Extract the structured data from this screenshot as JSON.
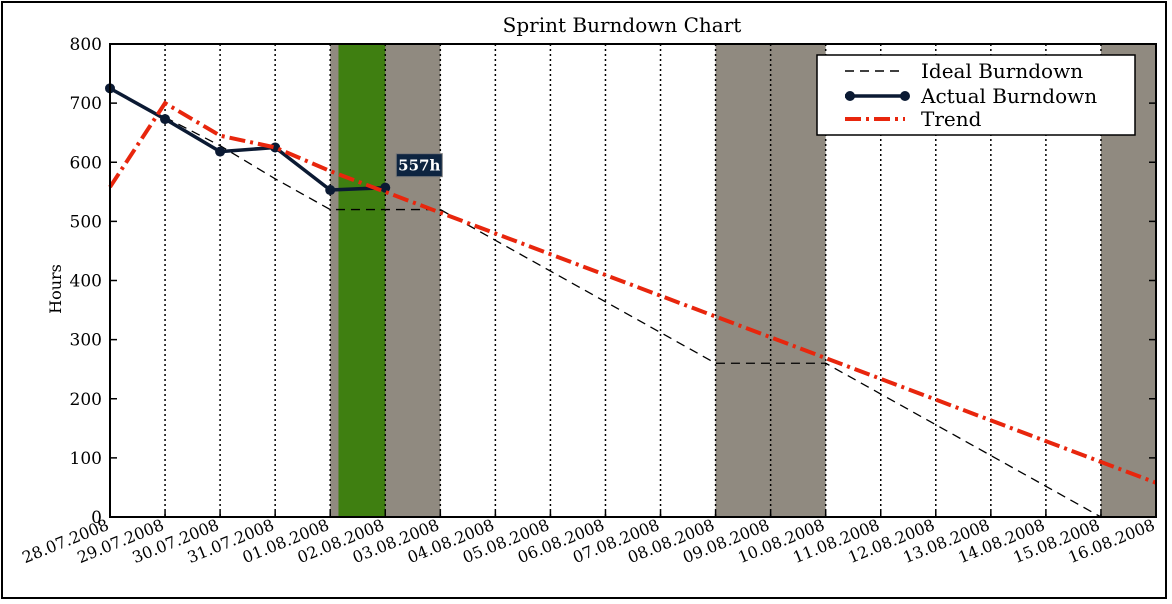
{
  "chart_data": {
    "type": "line",
    "title": "Sprint Burndown Chart",
    "xlabel": "",
    "ylabel": "Hours",
    "ylim": [
      0,
      800
    ],
    "yticks": [
      0,
      100,
      200,
      300,
      400,
      500,
      600,
      700,
      800
    ],
    "categories": [
      "28.07.2008",
      "29.07.2008",
      "30.07.2008",
      "31.07.2008",
      "01.08.2008",
      "02.08.2008",
      "03.08.2008",
      "04.08.2008",
      "05.08.2008",
      "06.08.2008",
      "07.08.2008",
      "08.08.2008",
      "09.08.2008",
      "10.08.2008",
      "11.08.2008",
      "12.08.2008",
      "13.08.2008",
      "14.08.2008",
      "15.08.2008",
      "16.08.2008"
    ],
    "shaded_days": [
      {
        "from": "01.08.2008",
        "to": "03.08.2008",
        "color": "#908a80"
      },
      {
        "from": "08.08.2008",
        "to": "10.08.2008",
        "color": "#908a80"
      },
      {
        "from": "15.08.2008",
        "to": "16.08.2008",
        "color": "#908a80"
      }
    ],
    "today": {
      "from": 4.15,
      "to": 5.0,
      "color": "#3f7f11"
    },
    "series": [
      {
        "name": "Ideal Burndown",
        "style": "dashed",
        "color": "#000000",
        "x": [
          1,
          2,
          3,
          4,
          5,
          6,
          7,
          8,
          9,
          10,
          11,
          12,
          13,
          14,
          15,
          16,
          17,
          18
        ],
        "values": [
          676,
          628,
          572,
          520,
          520,
          520,
          468,
          416,
          364,
          312,
          260,
          260,
          260,
          208,
          156,
          104,
          52,
          0
        ]
      },
      {
        "name": "Actual Burndown",
        "style": "solid-marker",
        "color": "#0b1a33",
        "x": [
          0,
          1,
          2,
          3,
          4,
          5
        ],
        "values": [
          725,
          673,
          618,
          625,
          553,
          557
        ]
      },
      {
        "name": "Trend",
        "style": "dash-dot",
        "color": "#e8260d",
        "x": [
          0,
          1,
          2,
          3,
          4,
          19
        ],
        "values": [
          558,
          700,
          645,
          625,
          585,
          58
        ]
      }
    ],
    "annotation": {
      "text": "557h",
      "x": 5,
      "y": 557
    },
    "legend": "top-right"
  }
}
